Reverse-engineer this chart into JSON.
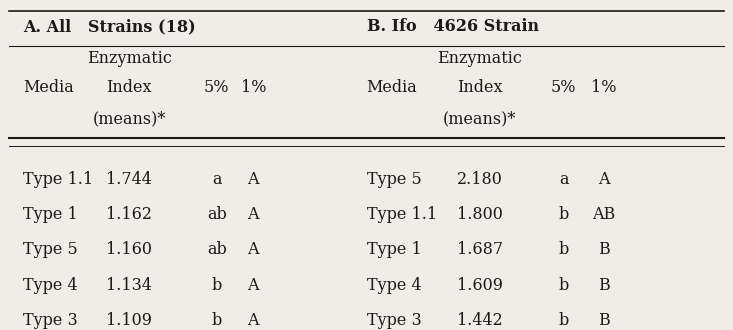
{
  "section_a_header": "A. All   Strains (18)",
  "section_b_header": "B. Ifo   4626 Strain",
  "col_headers_a": [
    "Media",
    "Enzymatic\nIndex\n(means)*",
    "5%",
    "1%"
  ],
  "col_headers_b": [
    "Media",
    "Enzymatic\nIndex\n(means)*",
    "5%",
    "1%"
  ],
  "rows_a": [
    [
      "Type 1.1",
      "1.744",
      "a",
      "A"
    ],
    [
      "Type 1",
      "1.162",
      "ab",
      "A"
    ],
    [
      "Type 5",
      "1.160",
      "ab",
      "A"
    ],
    [
      "Type 4",
      "1.134",
      "b",
      "A"
    ],
    [
      "Type 3",
      "1.109",
      "b",
      "A"
    ]
  ],
  "rows_b": [
    [
      "Type 5",
      "2.180",
      "a",
      "A"
    ],
    [
      "Type 1.1",
      "1.800",
      "b",
      "AB"
    ],
    [
      "Type 1",
      "1.687",
      "b",
      "B"
    ],
    [
      "Type 4",
      "1.609",
      "b",
      "B"
    ],
    [
      "Type 3",
      "1.442",
      "b",
      "B"
    ]
  ],
  "background_color": "#f0ede8",
  "text_color": "#1a1a1a",
  "font_size": 11.5,
  "header_font_size": 11.5
}
